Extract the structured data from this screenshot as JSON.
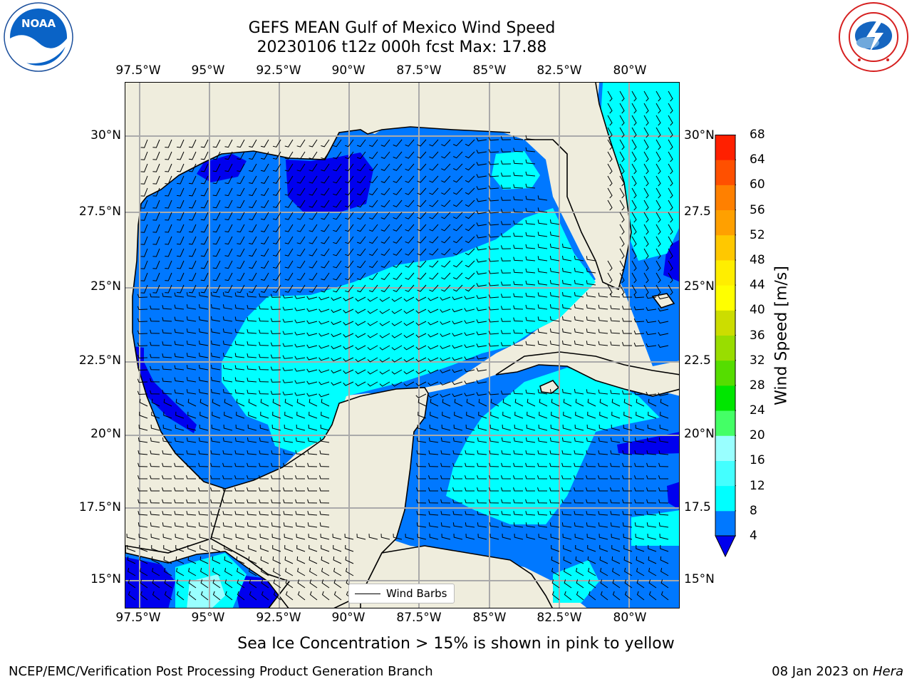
{
  "title_line1": "GEFS MEAN Gulf of Mexico Wind Speed",
  "title_line2": "20230106 t12z 000h fcst   Max: 17.88",
  "logos": {
    "left": "noaa-logo",
    "left_text": "NOAA",
    "right": "nws-logo"
  },
  "lon_labels": [
    "97.5°W",
    "95°W",
    "92.5°W",
    "90°W",
    "87.5°W",
    "85°W",
    "82.5°W",
    "80°W"
  ],
  "lat_labels": [
    "30°N",
    "27.5°N",
    "25°N",
    "22.5°N",
    "20°N",
    "17.5°N",
    "15°N"
  ],
  "lat_labels_right": [
    "30°N",
    "27.5",
    "25°N",
    "22.5",
    "20°N",
    "17.5",
    "15°N"
  ],
  "legend": {
    "label": "Wind Barbs"
  },
  "colorbar": {
    "label": "Wind Speed [m/s]",
    "ticks": [
      "4",
      "8",
      "12",
      "16",
      "20",
      "24",
      "28",
      "32",
      "36",
      "40",
      "44",
      "48",
      "52",
      "56",
      "60",
      "64",
      "68"
    ],
    "colors": [
      "#0078ff",
      "#00ffff",
      "#44ffff",
      "#99ffff",
      "#44ff66",
      "#00e600",
      "#55dd00",
      "#99dd00",
      "#ccdd00",
      "#ffff00",
      "#ffee00",
      "#ffc800",
      "#ffa000",
      "#ff8000",
      "#ff5000",
      "#ff2000"
    ],
    "under_color": "#0000ee"
  },
  "map": {
    "land_color": "#efeddd",
    "water_4_8": "#0078ff",
    "water_8_12": "#00ffff",
    "water_under_4": "#0000ee"
  },
  "footnote": "Sea Ice Concentration > 15% is shown in pink to yellow",
  "branch": "NCEP/EMC/Verification Post Processing Product Generation Branch",
  "date_text": "08 Jan 2023 on ",
  "date_host": "Hera"
}
